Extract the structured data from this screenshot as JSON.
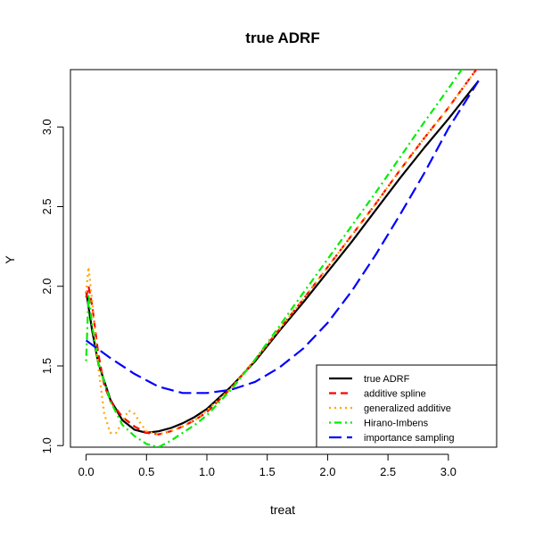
{
  "chart_data": {
    "type": "line",
    "title": "true ADRF",
    "xlabel": "treat",
    "ylabel": "Y",
    "xlim": [
      -0.13,
      3.4
    ],
    "ylim": [
      0.99,
      3.36
    ],
    "xticks": [
      0.0,
      0.5,
      1.0,
      1.5,
      2.0,
      2.5,
      3.0
    ],
    "xtick_labels": [
      "0.0",
      "0.5",
      "1.0",
      "1.5",
      "2.0",
      "2.5",
      "3.0"
    ],
    "yticks": [
      1.0,
      1.5,
      2.0,
      2.5,
      3.0
    ],
    "ytick_labels": [
      "1.0",
      "1.5",
      "2.0",
      "2.5",
      "3.0"
    ],
    "grid": false,
    "legend_position": "bottom-right",
    "series": [
      {
        "name": "true ADRF",
        "color": "#000000",
        "dash": "solid",
        "x": [
          0.0,
          0.05,
          0.1,
          0.2,
          0.3,
          0.4,
          0.5,
          0.6,
          0.7,
          0.8,
          0.9,
          1.0,
          1.2,
          1.4,
          1.6,
          1.8,
          2.0,
          2.2,
          2.4,
          2.6,
          2.8,
          3.0,
          3.25
        ],
        "y": [
          1.97,
          1.72,
          1.52,
          1.29,
          1.16,
          1.1,
          1.08,
          1.09,
          1.11,
          1.14,
          1.18,
          1.23,
          1.37,
          1.53,
          1.72,
          1.9,
          2.09,
          2.28,
          2.48,
          2.68,
          2.87,
          3.05,
          3.29
        ]
      },
      {
        "name": "additive spline",
        "color": "#ff0000",
        "dash": "dashed",
        "x": [
          0.0,
          0.02,
          0.05,
          0.1,
          0.15,
          0.2,
          0.3,
          0.4,
          0.5,
          0.6,
          0.7,
          0.8,
          0.9,
          1.0,
          1.2,
          1.4,
          1.6,
          1.8,
          2.0,
          2.2,
          2.4,
          2.6,
          2.8,
          3.0,
          3.25
        ],
        "y": [
          1.93,
          2.0,
          1.88,
          1.58,
          1.38,
          1.28,
          1.18,
          1.12,
          1.08,
          1.07,
          1.09,
          1.12,
          1.16,
          1.21,
          1.36,
          1.54,
          1.73,
          1.92,
          2.12,
          2.32,
          2.52,
          2.73,
          2.93,
          3.12,
          3.38
        ]
      },
      {
        "name": "generalized additive",
        "color": "#ffa500",
        "dash": "dotted",
        "x": [
          0.0,
          0.02,
          0.05,
          0.1,
          0.15,
          0.2,
          0.25,
          0.3,
          0.35,
          0.4,
          0.45,
          0.5,
          0.6,
          0.7,
          0.8,
          0.9,
          1.0,
          1.2,
          1.4,
          1.6,
          1.8,
          2.0,
          2.2,
          2.4,
          2.6,
          2.8,
          3.0,
          3.25
        ],
        "y": [
          1.96,
          2.12,
          1.9,
          1.5,
          1.2,
          1.08,
          1.08,
          1.15,
          1.22,
          1.2,
          1.14,
          1.09,
          1.07,
          1.09,
          1.12,
          1.16,
          1.22,
          1.36,
          1.54,
          1.73,
          1.92,
          2.12,
          2.32,
          2.52,
          2.73,
          2.93,
          3.12,
          3.38
        ]
      },
      {
        "name": "Hirano-Imbens",
        "color": "#00ee00",
        "dash": "dotdash",
        "x": [
          0.0,
          0.02,
          0.05,
          0.1,
          0.2,
          0.3,
          0.4,
          0.5,
          0.6,
          0.7,
          0.8,
          0.9,
          1.0,
          1.2,
          1.4,
          1.6,
          1.8,
          2.0,
          2.2,
          2.4,
          2.6,
          2.8,
          3.0,
          3.13
        ],
        "y": [
          1.53,
          1.95,
          1.75,
          1.52,
          1.28,
          1.13,
          1.06,
          1.01,
          0.99,
          1.03,
          1.08,
          1.13,
          1.19,
          1.35,
          1.54,
          1.75,
          1.96,
          2.17,
          2.38,
          2.59,
          2.81,
          3.03,
          3.24,
          3.38
        ]
      },
      {
        "name": "importance sampling",
        "color": "#0000ff",
        "dash": "longdash",
        "x": [
          0.0,
          0.2,
          0.4,
          0.6,
          0.8,
          1.0,
          1.2,
          1.4,
          1.6,
          1.8,
          2.0,
          2.2,
          2.4,
          2.6,
          2.8,
          3.0,
          3.25
        ],
        "y": [
          1.66,
          1.55,
          1.45,
          1.37,
          1.33,
          1.33,
          1.35,
          1.4,
          1.49,
          1.61,
          1.77,
          1.97,
          2.2,
          2.45,
          2.71,
          2.99,
          3.29
        ]
      }
    ]
  }
}
